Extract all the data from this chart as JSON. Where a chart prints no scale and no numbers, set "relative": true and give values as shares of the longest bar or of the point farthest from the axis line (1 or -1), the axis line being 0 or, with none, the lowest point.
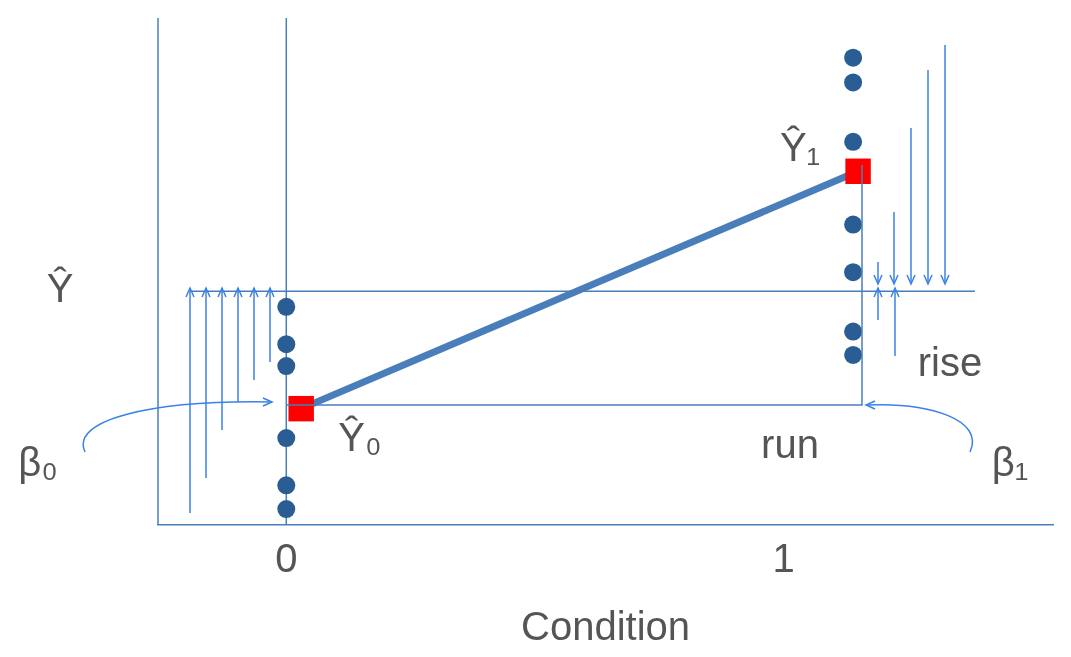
{
  "chart_data": {
    "type": "scatter",
    "relative": true,
    "xlabel": "Condition",
    "xlim": [
      -0.258,
      1.542
    ],
    "xticks": [
      0,
      1
    ],
    "grid": false,
    "legend": false,
    "series": [
      {
        "marker": "circle",
        "color": "#2a5d93",
        "x": [
          0,
          0,
          0,
          0,
          0,
          0
        ],
        "values": [
          0.467,
          0.387,
          0.34,
          0.186,
          0.085,
          0.034
        ]
      },
      {
        "marker": "circle",
        "color": "#2a5d93",
        "x": [
          1.14,
          1.14,
          1.14,
          1.14,
          1.14,
          1.14,
          1.14
        ],
        "values": [
          1,
          0.947,
          0.82,
          0.643,
          0.541,
          0.414,
          0.364
        ]
      },
      {
        "type": "line",
        "marker": "none",
        "color": "#4a7ebb",
        "x": [
          0.03,
          1.15
        ],
        "values": [
          0.249,
          0.757
        ]
      },
      {
        "type": "scatter",
        "marker": "square",
        "color": "#ff0000",
        "x": [
          0.03,
          1.15
        ],
        "values": [
          0.249,
          0.757
        ]
      }
    ],
    "ref_lines": [
      {
        "axis": "y",
        "value": 0.5,
        "label": "Ŷ",
        "color": "#4a7ebb"
      },
      {
        "axis": "x",
        "value": 0,
        "color": "#4a7ebb"
      }
    ],
    "annotations": [
      "Ŷ₁",
      "Ŷ₀",
      "rise",
      "β₀",
      "β₁",
      "run"
    ]
  }
}
